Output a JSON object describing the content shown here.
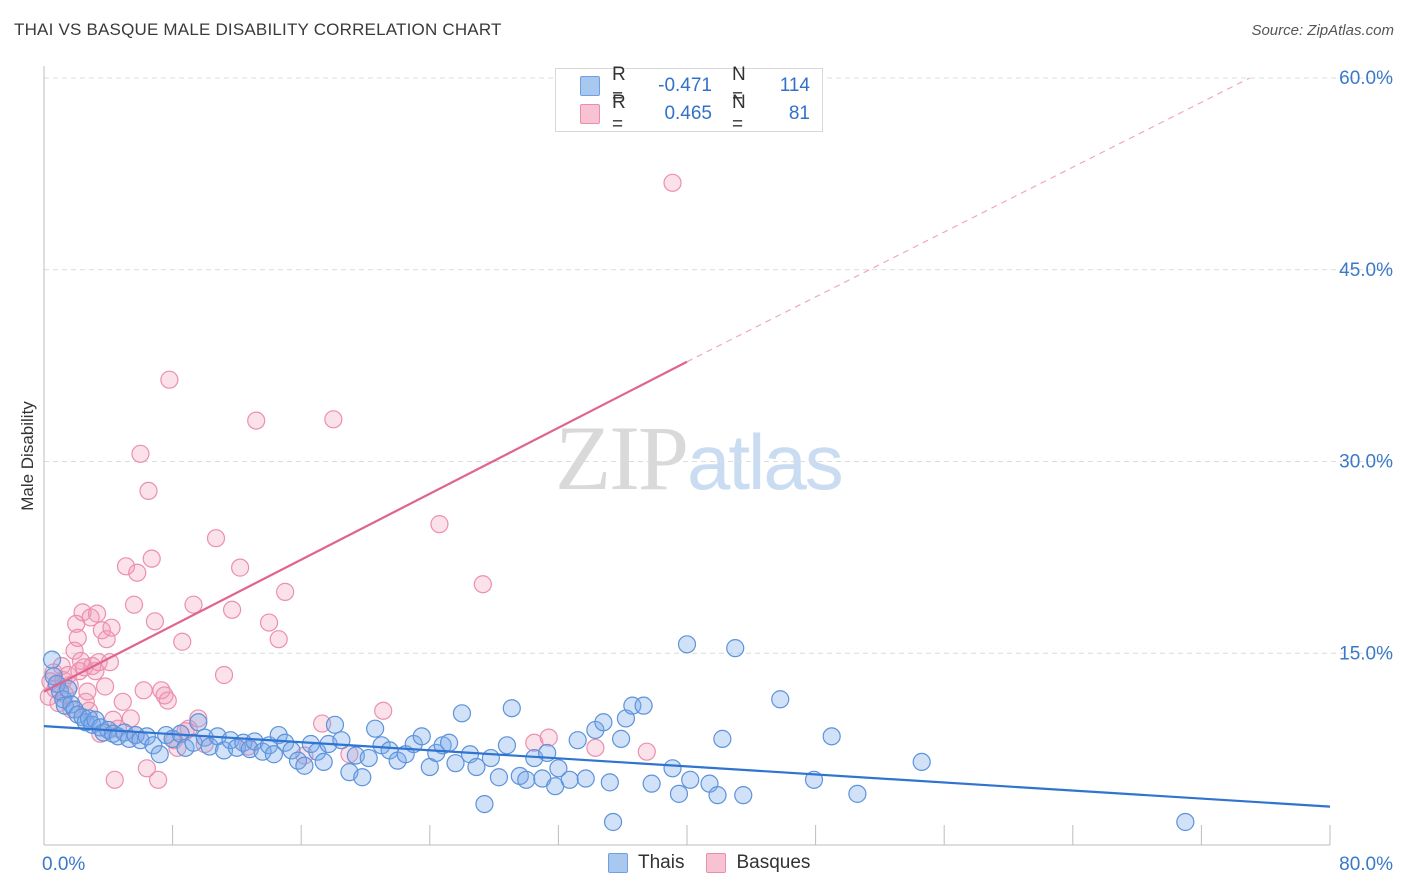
{
  "header": {
    "title": "THAI VS BASQUE MALE DISABILITY CORRELATION CHART",
    "source": "Source: ZipAtlas.com"
  },
  "watermark": {
    "zip": "ZIP",
    "atlas": "atlas"
  },
  "legend": {
    "rows": [
      {
        "r_label": "R =",
        "r_value": "-0.471",
        "n_label": "N =",
        "n_value": "114",
        "color": "#a9c8f0",
        "border": "#6fa0e0"
      },
      {
        "r_label": "R =",
        "r_value": "0.465",
        "n_label": "N =",
        "n_value": "81",
        "color": "#f7c3d3",
        "border": "#e98fac"
      }
    ]
  },
  "bottom_legend": {
    "thais": "Thais",
    "basques": "Basques"
  },
  "colors": {
    "thai_fill": "rgba(120,170,235,0.35)",
    "thai_stroke": "#5d93da",
    "thai_line": "#2f74d0",
    "basque_fill": "rgba(240,150,180,0.28)",
    "basque_stroke": "#ec8fae",
    "basque_line": "#e0648f",
    "grid": "#dcdcdc",
    "tick_label": "#3a78c9"
  },
  "chart_data": {
    "type": "scatter",
    "title": "THAI VS BASQUE MALE DISABILITY CORRELATION CHART",
    "xlabel": "",
    "ylabel": "Male Disability",
    "xlim": [
      0,
      80
    ],
    "ylim": [
      0,
      60
    ],
    "x_tick_labels": [
      "0.0%",
      "80.0%"
    ],
    "y_ticks": [
      15,
      30,
      45,
      60
    ],
    "y_tick_labels": [
      "15.0%",
      "30.0%",
      "45.0%",
      "60.0%"
    ],
    "grid": true,
    "series": [
      {
        "name": "Thais",
        "r": -0.471,
        "n": 114,
        "trend": {
          "x0": 0,
          "y0": 9.3,
          "x1": 80,
          "y1": 3.0
        },
        "points": [
          [
            0.5,
            14.5
          ],
          [
            0.6,
            13.2
          ],
          [
            0.8,
            12.6
          ],
          [
            1.0,
            12.0
          ],
          [
            1.2,
            11.4
          ],
          [
            1.3,
            10.9
          ],
          [
            1.5,
            12.2
          ],
          [
            1.7,
            11.0
          ],
          [
            1.9,
            10.6
          ],
          [
            2.1,
            10.2
          ],
          [
            2.4,
            10.0
          ],
          [
            2.6,
            9.6
          ],
          [
            2.8,
            9.9
          ],
          [
            3.0,
            9.4
          ],
          [
            3.2,
            9.8
          ],
          [
            3.5,
            9.2
          ],
          [
            3.7,
            8.8
          ],
          [
            4.0,
            9.0
          ],
          [
            4.3,
            8.7
          ],
          [
            4.6,
            8.5
          ],
          [
            5.0,
            8.8
          ],
          [
            5.3,
            8.3
          ],
          [
            5.7,
            8.6
          ],
          [
            6.0,
            8.2
          ],
          [
            6.4,
            8.5
          ],
          [
            6.8,
            7.8
          ],
          [
            7.2,
            7.1
          ],
          [
            7.6,
            8.6
          ],
          [
            8.0,
            8.3
          ],
          [
            8.5,
            8.7
          ],
          [
            8.8,
            7.6
          ],
          [
            9.3,
            8.0
          ],
          [
            9.6,
            9.6
          ],
          [
            10.0,
            8.4
          ],
          [
            10.3,
            7.7
          ],
          [
            10.8,
            8.5
          ],
          [
            11.2,
            7.4
          ],
          [
            11.6,
            8.2
          ],
          [
            12.0,
            7.6
          ],
          [
            12.4,
            8.0
          ],
          [
            12.8,
            7.5
          ],
          [
            13.1,
            8.1
          ],
          [
            13.6,
            7.3
          ],
          [
            14.0,
            7.8
          ],
          [
            14.3,
            7.1
          ],
          [
            14.6,
            8.6
          ],
          [
            15.0,
            8.0
          ],
          [
            15.4,
            7.4
          ],
          [
            15.8,
            6.6
          ],
          [
            16.2,
            6.2
          ],
          [
            16.6,
            7.9
          ],
          [
            17.0,
            7.3
          ],
          [
            17.4,
            6.5
          ],
          [
            17.7,
            7.9
          ],
          [
            18.1,
            9.4
          ],
          [
            18.5,
            8.2
          ],
          [
            19.0,
            5.7
          ],
          [
            19.4,
            7.0
          ],
          [
            19.8,
            5.3
          ],
          [
            20.2,
            6.8
          ],
          [
            20.6,
            9.1
          ],
          [
            21.0,
            7.8
          ],
          [
            21.5,
            7.4
          ],
          [
            22.0,
            6.6
          ],
          [
            22.5,
            7.1
          ],
          [
            23.0,
            7.9
          ],
          [
            23.5,
            8.5
          ],
          [
            24.0,
            6.1
          ],
          [
            24.4,
            7.2
          ],
          [
            24.8,
            7.8
          ],
          [
            25.2,
            8.0
          ],
          [
            25.6,
            6.4
          ],
          [
            26.0,
            10.3
          ],
          [
            26.5,
            7.1
          ],
          [
            26.9,
            6.1
          ],
          [
            27.4,
            3.2
          ],
          [
            27.8,
            6.8
          ],
          [
            28.3,
            5.3
          ],
          [
            28.8,
            7.8
          ],
          [
            29.1,
            10.7
          ],
          [
            29.6,
            5.4
          ],
          [
            30.0,
            5.1
          ],
          [
            30.5,
            6.8
          ],
          [
            31.0,
            5.2
          ],
          [
            31.3,
            7.2
          ],
          [
            31.8,
            4.6
          ],
          [
            32.0,
            6.0
          ],
          [
            32.7,
            5.1
          ],
          [
            33.2,
            8.2
          ],
          [
            33.7,
            5.2
          ],
          [
            34.3,
            9.0
          ],
          [
            34.8,
            9.6
          ],
          [
            35.2,
            4.9
          ],
          [
            35.4,
            1.8
          ],
          [
            35.9,
            8.3
          ],
          [
            36.2,
            9.9
          ],
          [
            36.6,
            10.9
          ],
          [
            37.3,
            10.9
          ],
          [
            37.8,
            4.8
          ],
          [
            39.1,
            6.0
          ],
          [
            39.5,
            4.0
          ],
          [
            40.0,
            15.7
          ],
          [
            40.2,
            5.1
          ],
          [
            41.4,
            4.8
          ],
          [
            41.9,
            3.9
          ],
          [
            42.2,
            8.3
          ],
          [
            43.0,
            15.4
          ],
          [
            43.5,
            3.9
          ],
          [
            45.8,
            11.4
          ],
          [
            47.9,
            5.1
          ],
          [
            49.0,
            8.5
          ],
          [
            50.6,
            4.0
          ],
          [
            54.6,
            6.5
          ],
          [
            71.0,
            1.8
          ]
        ]
      },
      {
        "name": "Basques",
        "r": 0.465,
        "n": 81,
        "trend": {
          "x0": 0,
          "y0": 12.0,
          "x1": 40,
          "y1": 37.8,
          "dash_to_x": 75,
          "dash_to_y": 60
        },
        "points": [
          [
            0.3,
            11.6
          ],
          [
            0.4,
            12.8
          ],
          [
            0.6,
            13.5
          ],
          [
            0.7,
            12.2
          ],
          [
            0.9,
            11.1
          ],
          [
            1.1,
            14.0
          ],
          [
            1.2,
            12.9
          ],
          [
            1.3,
            11.8
          ],
          [
            1.5,
            13.3
          ],
          [
            1.6,
            12.5
          ],
          [
            1.7,
            10.6
          ],
          [
            1.9,
            15.2
          ],
          [
            2.0,
            17.3
          ],
          [
            2.1,
            16.2
          ],
          [
            2.2,
            13.6
          ],
          [
            2.3,
            14.4
          ],
          [
            2.4,
            18.2
          ],
          [
            2.5,
            13.9
          ],
          [
            2.6,
            11.2
          ],
          [
            2.7,
            12.0
          ],
          [
            2.8,
            10.5
          ],
          [
            2.9,
            17.8
          ],
          [
            3.0,
            14.0
          ],
          [
            3.2,
            13.6
          ],
          [
            3.3,
            18.1
          ],
          [
            3.4,
            14.3
          ],
          [
            3.5,
            8.7
          ],
          [
            3.6,
            16.8
          ],
          [
            3.8,
            12.4
          ],
          [
            3.9,
            16.1
          ],
          [
            4.1,
            14.3
          ],
          [
            4.2,
            17.0
          ],
          [
            4.3,
            9.8
          ],
          [
            4.4,
            5.1
          ],
          [
            4.6,
            9.1
          ],
          [
            4.9,
            11.2
          ],
          [
            5.1,
            21.8
          ],
          [
            5.4,
            9.9
          ],
          [
            5.6,
            18.8
          ],
          [
            5.7,
            8.6
          ],
          [
            5.8,
            21.3
          ],
          [
            6.0,
            30.6
          ],
          [
            6.2,
            12.1
          ],
          [
            6.4,
            6.0
          ],
          [
            6.5,
            27.7
          ],
          [
            6.7,
            22.4
          ],
          [
            6.9,
            17.5
          ],
          [
            7.1,
            5.1
          ],
          [
            7.3,
            12.1
          ],
          [
            7.5,
            11.7
          ],
          [
            7.7,
            11.3
          ],
          [
            7.8,
            36.4
          ],
          [
            8.1,
            8.2
          ],
          [
            8.3,
            7.6
          ],
          [
            8.6,
            15.9
          ],
          [
            8.8,
            8.9
          ],
          [
            9.0,
            9.1
          ],
          [
            9.3,
            18.8
          ],
          [
            9.6,
            9.9
          ],
          [
            10.0,
            7.9
          ],
          [
            10.7,
            24.0
          ],
          [
            11.2,
            13.3
          ],
          [
            11.7,
            18.4
          ],
          [
            12.2,
            21.7
          ],
          [
            12.7,
            7.7
          ],
          [
            13.2,
            33.2
          ],
          [
            14.0,
            17.4
          ],
          [
            14.6,
            16.1
          ],
          [
            15.0,
            19.8
          ],
          [
            16.2,
            7.0
          ],
          [
            17.3,
            9.5
          ],
          [
            18.0,
            33.3
          ],
          [
            19.0,
            7.1
          ],
          [
            21.1,
            10.5
          ],
          [
            24.6,
            25.1
          ],
          [
            27.3,
            20.4
          ],
          [
            30.5,
            8.0
          ],
          [
            31.4,
            8.4
          ],
          [
            34.3,
            7.6
          ],
          [
            37.5,
            7.3
          ],
          [
            39.1,
            51.8
          ]
        ]
      }
    ]
  }
}
